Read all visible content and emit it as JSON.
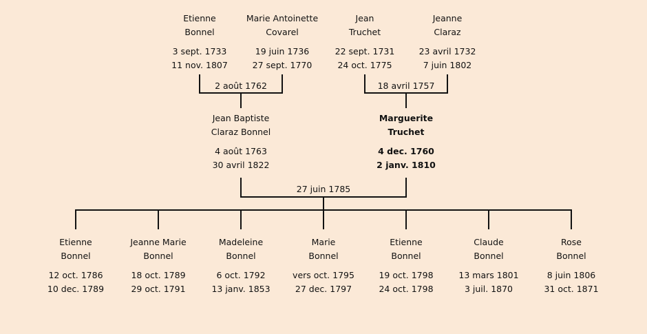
{
  "grandparents": [
    {
      "first": "Etienne",
      "last": "Bonnel",
      "birth": "3 sept. 1733",
      "death": "11 nov. 1807"
    },
    {
      "first": "Marie Antoinette",
      "last": "Covarel",
      "birth": "19 juin 1736",
      "death": "27 sept. 1770"
    },
    {
      "first": "Jean",
      "last": "Truchet",
      "birth": "22 sept. 1731",
      "death": "24 oct. 1775"
    },
    {
      "first": "Jeanne",
      "last": "Claraz",
      "birth": "23 avril 1732",
      "death": "7 juin 1802"
    }
  ],
  "grandparent_marriages": [
    "2 août 1762",
    "18 avril 1757"
  ],
  "parents": [
    {
      "first": "Jean Baptiste",
      "last": "Claraz Bonnel",
      "birth": "4 août 1763",
      "death": "30 avril 1822",
      "highlighted": false
    },
    {
      "first": "Marguerite",
      "last": "Truchet",
      "birth": "4 dec. 1760",
      "death": "2 janv. 1810",
      "highlighted": true
    }
  ],
  "parent_marriage": "27 juin 1785",
  "children": [
    {
      "first": "Etienne",
      "last": "Bonnel",
      "birth": "12 oct. 1786",
      "death": "10 dec. 1789"
    },
    {
      "first": "Jeanne Marie",
      "last": "Bonnel",
      "birth": "18 oct. 1789",
      "death": "29 oct. 1791"
    },
    {
      "first": "Madeleine",
      "last": "Bonnel",
      "birth": "6 oct. 1792",
      "death": "13 janv. 1853"
    },
    {
      "first": "Marie",
      "last": "Bonnel",
      "birth": "vers oct. 1795",
      "death": "27 dec. 1797"
    },
    {
      "first": "Etienne",
      "last": "Bonnel",
      "birth": "19 oct. 1798",
      "death": "24 oct. 1798"
    },
    {
      "first": "Claude",
      "last": "Bonnel",
      "birth": "13 mars 1801",
      "death": "3 juil. 1870"
    },
    {
      "first": "Rose",
      "last": "Bonnel",
      "birth": "8 juin 1806",
      "death": "31 oct. 1871"
    }
  ],
  "colors": {
    "background": "#fbe9d7",
    "line": "#111111"
  }
}
